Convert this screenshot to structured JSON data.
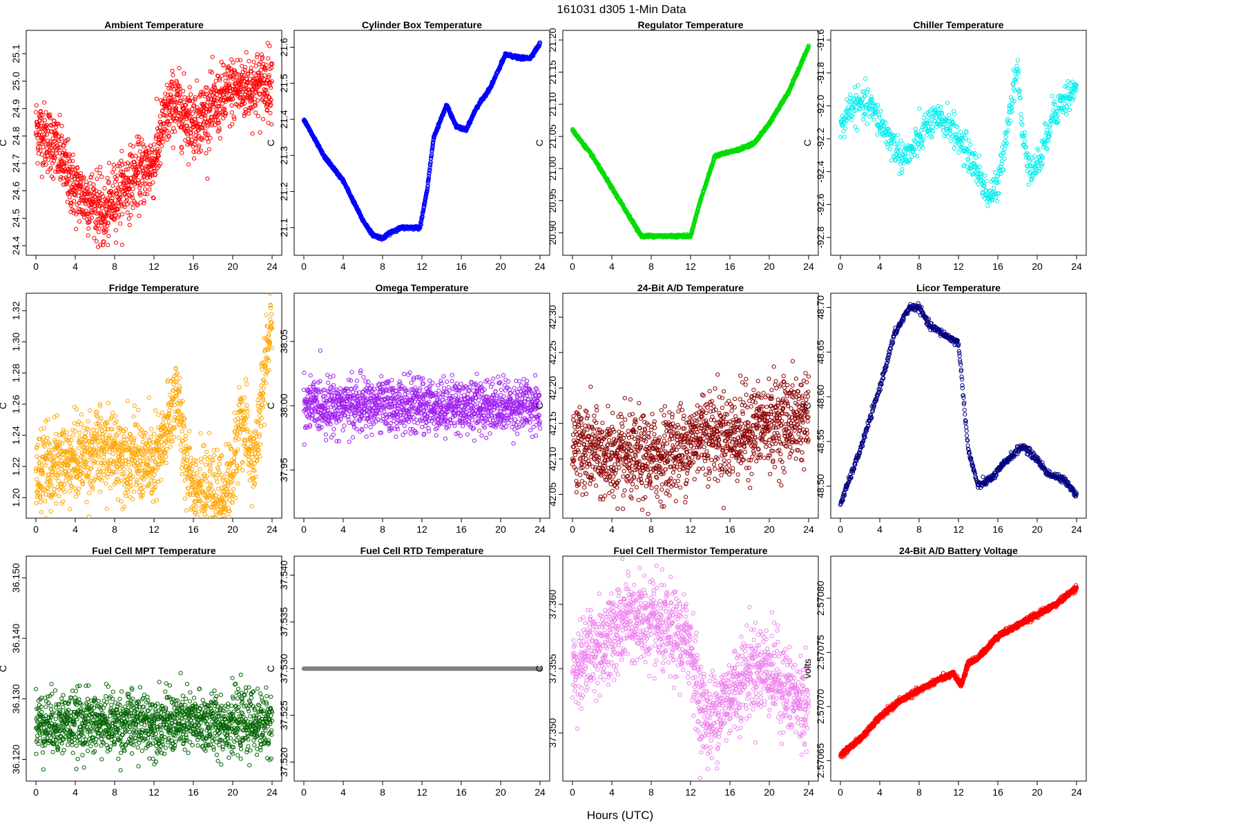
{
  "figure": {
    "title": "161031    d305    1-Min Data",
    "xlabel": "Hours (UTC)"
  },
  "chart_data": [
    {
      "type": "scatter",
      "title": "Ambient Temperature",
      "ylabel": "C",
      "color": "#ff0000",
      "xlim": [
        0,
        24
      ],
      "ylim": [
        24.4,
        25.15
      ],
      "xticks": [
        "0",
        "4",
        "8",
        "12",
        "16",
        "20",
        "24"
      ],
      "yticks": [
        "24.4",
        "24.5",
        "24.6",
        "24.7",
        "24.8",
        "24.9",
        "25.0",
        "25.1"
      ],
      "shape": [
        [
          0,
          24.83
        ],
        [
          2,
          24.76
        ],
        [
          4,
          24.6
        ],
        [
          6,
          24.55
        ],
        [
          7,
          24.5
        ],
        [
          8,
          24.58
        ],
        [
          10,
          24.65
        ],
        [
          12,
          24.7
        ],
        [
          13,
          24.85
        ],
        [
          14,
          24.92
        ],
        [
          16,
          24.85
        ],
        [
          18,
          24.9
        ],
        [
          20,
          24.97
        ],
        [
          22,
          24.98
        ],
        [
          24,
          25.0
        ]
      ],
      "noise": 0.06,
      "n": 1440
    },
    {
      "type": "scatter",
      "title": "Cylinder Box Temperature",
      "ylabel": "C",
      "color": "#0000ff",
      "xlim": [
        0,
        24
      ],
      "ylim": [
        21.05,
        21.62
      ],
      "xticks": [
        "0",
        "4",
        "8",
        "12",
        "16",
        "20",
        "24"
      ],
      "yticks": [
        "21.1",
        "21.2",
        "21.3",
        "21.4",
        "21.5",
        "21.6"
      ],
      "shape": [
        [
          0,
          21.4
        ],
        [
          2,
          21.3
        ],
        [
          4,
          21.23
        ],
        [
          6,
          21.12
        ],
        [
          7,
          21.08
        ],
        [
          8,
          21.07
        ],
        [
          9,
          21.09
        ],
        [
          10,
          21.1
        ],
        [
          11.8,
          21.1
        ],
        [
          12.5,
          21.2
        ],
        [
          13.2,
          21.35
        ],
        [
          14.5,
          21.44
        ],
        [
          15.5,
          21.38
        ],
        [
          16.5,
          21.37
        ],
        [
          17.5,
          21.43
        ],
        [
          19,
          21.49
        ],
        [
          20.5,
          21.58
        ],
        [
          22,
          21.57
        ],
        [
          23,
          21.57
        ],
        [
          24,
          21.61
        ]
      ],
      "noise": 0.002,
      "n": 1440
    },
    {
      "type": "scatter",
      "title": "Regulator Temperature",
      "ylabel": "C",
      "color": "#00dd00",
      "xlim": [
        0,
        24
      ],
      "ylim": [
        20.88,
        21.2
      ],
      "xticks": [
        "0",
        "4",
        "8",
        "12",
        "16",
        "20",
        "24"
      ],
      "yticks": [
        "20.90",
        "20.95",
        "21.00",
        "21.05",
        "21.10",
        "21.15",
        "21.20"
      ],
      "shape": [
        [
          0,
          21.06
        ],
        [
          2,
          21.02
        ],
        [
          4,
          20.97
        ],
        [
          6,
          20.92
        ],
        [
          7,
          20.895
        ],
        [
          10,
          20.895
        ],
        [
          12,
          20.895
        ],
        [
          13,
          20.95
        ],
        [
          14.5,
          21.02
        ],
        [
          17,
          21.03
        ],
        [
          18.5,
          21.04
        ],
        [
          20,
          21.07
        ],
        [
          22,
          21.12
        ],
        [
          24,
          21.19
        ]
      ],
      "noise": 0.001,
      "n": 1440
    },
    {
      "type": "scatter",
      "title": "Chiller Temperature",
      "ylabel": "C",
      "color": "#00eeee",
      "xlim": [
        0,
        24
      ],
      "ylim": [
        -92.85,
        -91.6
      ],
      "xticks": [
        "0",
        "4",
        "8",
        "12",
        "16",
        "20",
        "24"
      ],
      "yticks": [
        "-92.8",
        "-92.6",
        "-92.4",
        "-92.2",
        "-92.0",
        "-91.8",
        "-91.6"
      ],
      "shape": [
        [
          0,
          -92.15
        ],
        [
          1,
          -92.0
        ],
        [
          3,
          -92.0
        ],
        [
          4,
          -92.1
        ],
        [
          5,
          -92.2
        ],
        [
          6,
          -92.3
        ],
        [
          7,
          -92.3
        ],
        [
          8,
          -92.2
        ],
        [
          9,
          -92.1
        ],
        [
          11,
          -92.1
        ],
        [
          12,
          -92.2
        ],
        [
          13,
          -92.3
        ],
        [
          14,
          -92.4
        ],
        [
          15,
          -92.55
        ],
        [
          16,
          -92.5
        ],
        [
          17,
          -92.1
        ],
        [
          18,
          -91.75
        ],
        [
          18.5,
          -92.2
        ],
        [
          19.5,
          -92.4
        ],
        [
          20.5,
          -92.3
        ],
        [
          21.5,
          -92.05
        ],
        [
          23,
          -91.95
        ],
        [
          24,
          -91.9
        ]
      ],
      "noise": 0.05,
      "n": 720
    },
    {
      "type": "scatter",
      "title": "Fridge Temperature",
      "ylabel": "C",
      "color": "#ffa500",
      "xlim": [
        0,
        24
      ],
      "ylim": [
        1.193,
        1.325
      ],
      "xticks": [
        "0",
        "4",
        "8",
        "12",
        "16",
        "20",
        "24"
      ],
      "yticks": [
        "1.20",
        "1.22",
        "1.24",
        "1.26",
        "1.28",
        "1.30",
        "1.32"
      ],
      "shape": [
        [
          0,
          1.215
        ],
        [
          2,
          1.22
        ],
        [
          4,
          1.225
        ],
        [
          6,
          1.23
        ],
        [
          8,
          1.23
        ],
        [
          10,
          1.225
        ],
        [
          12,
          1.22
        ],
        [
          13,
          1.235
        ],
        [
          14.3,
          1.27
        ],
        [
          15,
          1.23
        ],
        [
          16,
          1.21
        ],
        [
          17,
          1.2
        ],
        [
          19,
          1.2
        ],
        [
          20,
          1.215
        ],
        [
          20.8,
          1.255
        ],
        [
          21.5,
          1.235
        ],
        [
          22.2,
          1.22
        ],
        [
          23,
          1.265
        ],
        [
          24,
          1.32
        ]
      ],
      "noise": 0.013,
      "n": 1440
    },
    {
      "type": "scatter",
      "title": "Omega Temperature",
      "ylabel": "C",
      "color": "#a020f0",
      "xlim": [
        0,
        24
      ],
      "ylim": [
        37.92,
        38.08
      ],
      "xticks": [
        "0",
        "4",
        "8",
        "12",
        "16",
        "20",
        "24"
      ],
      "yticks": [
        "37.95",
        "38.00",
        "38.05"
      ],
      "shape": [
        [
          0,
          38.0
        ],
        [
          24,
          38.0
        ]
      ],
      "noise": 0.01,
      "n": 1440
    },
    {
      "type": "scatter",
      "title": "24-Bit A/D Temperature",
      "ylabel": "C",
      "color": "#8b0000",
      "xlim": [
        0,
        24
      ],
      "ylim": [
        42.03,
        42.32
      ],
      "xticks": [
        "0",
        "4",
        "8",
        "12",
        "16",
        "20",
        "24"
      ],
      "yticks": [
        "42.05",
        "42.10",
        "42.15",
        "42.20",
        "42.25",
        "42.30"
      ],
      "shape": [
        [
          0,
          42.12
        ],
        [
          4,
          42.1
        ],
        [
          8,
          42.1
        ],
        [
          12,
          42.12
        ],
        [
          13,
          42.14
        ],
        [
          16,
          42.13
        ],
        [
          20,
          42.15
        ],
        [
          24,
          42.16
        ]
      ],
      "noise": 0.03,
      "n": 1440
    },
    {
      "type": "scatter",
      "title": "Licor Temperature",
      "ylabel": "C",
      "color": "#000080",
      "xlim": [
        0,
        24
      ],
      "ylim": [
        48.475,
        48.705
      ],
      "xticks": [
        "0",
        "4",
        "8",
        "12",
        "16",
        "20",
        "24"
      ],
      "yticks": [
        "48.50",
        "48.55",
        "48.60",
        "48.65",
        "48.70"
      ],
      "shape": [
        [
          0,
          48.48
        ],
        [
          2,
          48.54
        ],
        [
          4,
          48.61
        ],
        [
          5.5,
          48.67
        ],
        [
          7,
          48.7
        ],
        [
          8,
          48.7
        ],
        [
          9,
          48.68
        ],
        [
          10.5,
          48.67
        ],
        [
          12,
          48.66
        ],
        [
          12.5,
          48.6
        ],
        [
          13,
          48.54
        ],
        [
          14,
          48.5
        ],
        [
          15.5,
          48.51
        ],
        [
          17,
          48.53
        ],
        [
          18.5,
          48.545
        ],
        [
          20,
          48.53
        ],
        [
          21,
          48.515
        ],
        [
          22,
          48.51
        ],
        [
          23,
          48.505
        ],
        [
          24,
          48.49
        ]
      ],
      "noise": 0.002,
      "n": 720
    },
    {
      "type": "scatter",
      "title": "Fuel Cell MPT Temperature",
      "ylabel": "C",
      "color": "#006400",
      "xlim": [
        0,
        24
      ],
      "ylim": [
        36.118,
        36.152
      ],
      "xticks": [
        "0",
        "4",
        "8",
        "12",
        "16",
        "20",
        "24"
      ],
      "yticks": [
        "36.120",
        "36.130",
        "36.140",
        "36.150"
      ],
      "shape": [
        [
          0,
          36.126
        ],
        [
          24,
          36.126
        ]
      ],
      "noise": 0.0025,
      "n": 1440
    },
    {
      "type": "scatter",
      "title": "Fuel Cell RTD Temperature",
      "ylabel": "C",
      "color": "#808080",
      "xlim": [
        0,
        24
      ],
      "ylim": [
        37.519,
        37.541
      ],
      "xticks": [
        "0",
        "4",
        "8",
        "12",
        "16",
        "20",
        "24"
      ],
      "yticks": [
        "37.520",
        "37.525",
        "37.530",
        "37.535",
        "37.540"
      ],
      "shape": [
        [
          0,
          37.53
        ],
        [
          24,
          37.53
        ]
      ],
      "noise": 0,
      "n": 1440
    },
    {
      "type": "scatter",
      "title": "Fuel Cell Thermistor Temperature",
      "ylabel": "C",
      "color": "#ee82ee",
      "xlim": [
        0,
        24
      ],
      "ylim": [
        37.347,
        37.363
      ],
      "xticks": [
        "0",
        "4",
        "8",
        "12",
        "16",
        "20",
        "24"
      ],
      "yticks": [
        "37.350",
        "37.355",
        "37.360"
      ],
      "shape": [
        [
          0,
          37.355
        ],
        [
          3,
          37.357
        ],
        [
          6,
          37.359
        ],
        [
          9,
          37.358
        ],
        [
          12,
          37.357
        ],
        [
          13,
          37.352
        ],
        [
          14,
          37.351
        ],
        [
          16,
          37.353
        ],
        [
          18,
          37.355
        ],
        [
          20,
          37.355
        ],
        [
          22,
          37.353
        ],
        [
          24,
          37.352
        ]
      ],
      "noise": 0.0017,
      "n": 1440
    },
    {
      "type": "scatter",
      "title": "24-Bit A/D Battery Voltage",
      "ylabel": "volts",
      "color": "#ff0000",
      "xlim": [
        0,
        24
      ],
      "ylim": [
        2.57064,
        2.57083
      ],
      "xticks": [
        "0",
        "4",
        "8",
        "12",
        "16",
        "20",
        "24"
      ],
      "yticks": [
        "2.57065",
        "2.57070",
        "2.57075",
        "2.57080"
      ],
      "shape": [
        [
          0,
          2.570655
        ],
        [
          2,
          2.57067
        ],
        [
          4,
          2.57069
        ],
        [
          6,
          2.570705
        ],
        [
          8,
          2.570715
        ],
        [
          10,
          2.570725
        ],
        [
          11.5,
          2.57073
        ],
        [
          12.3,
          2.57072
        ],
        [
          13,
          2.57074
        ],
        [
          14,
          2.570745
        ],
        [
          16,
          2.570765
        ],
        [
          18,
          2.570775
        ],
        [
          20,
          2.570785
        ],
        [
          22,
          2.570795
        ],
        [
          24,
          2.57081
        ]
      ],
      "noise": 1.2e-06,
      "n": 1440
    }
  ]
}
